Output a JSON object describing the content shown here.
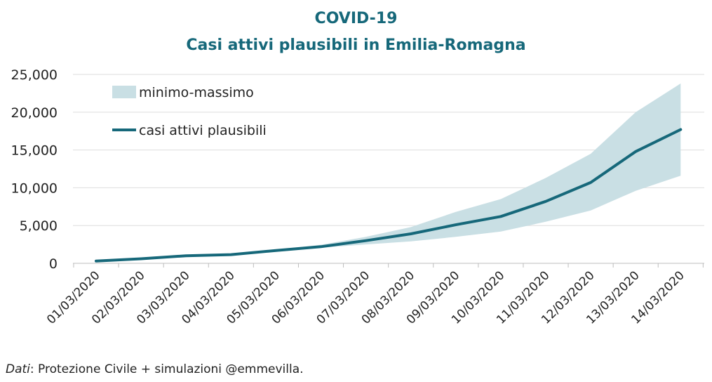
{
  "chart_data": {
    "type": "line",
    "title": "COVID-19",
    "subtitle": "Casi attivi plausibili in Emilia-Romagna",
    "xlabel": "",
    "ylabel": "",
    "categories": [
      "01/03/2020",
      "02/03/2020",
      "03/03/2020",
      "04/03/2020",
      "05/03/2020",
      "06/03/2020",
      "07/03/2020",
      "08/03/2020",
      "09/03/2020",
      "10/03/2020",
      "11/03/2020",
      "12/03/2020",
      "13/03/2020",
      "14/03/2020"
    ],
    "series": [
      {
        "name": "casi attivi plausibili",
        "values": [
          300,
          600,
          1000,
          1150,
          1700,
          2200,
          3000,
          3900,
          5100,
          6200,
          8200,
          10700,
          14800,
          17700
        ],
        "color": "#16687a"
      }
    ],
    "band": {
      "name": "minimo-massimo",
      "color": "#c9dfe4",
      "min": [
        300,
        600,
        1000,
        1150,
        1650,
        2050,
        2500,
        2900,
        3500,
        4200,
        5500,
        7000,
        9600,
        11600
      ],
      "max": [
        300,
        600,
        1000,
        1150,
        1800,
        2450,
        3500,
        4800,
        6800,
        8500,
        11300,
        14500,
        20000,
        23800
      ]
    },
    "ylim": [
      0,
      25000
    ],
    "yticks": [
      "0",
      "5,000",
      "10,000",
      "15,000",
      "20,000",
      "25,000"
    ],
    "ytick_values": [
      0,
      5000,
      10000,
      15000,
      20000,
      25000
    ],
    "grid": true,
    "legend": "top-left"
  },
  "source": {
    "prefix": "Dati",
    "text": ": Protezione Civile + simulazioni @emmevilla."
  }
}
